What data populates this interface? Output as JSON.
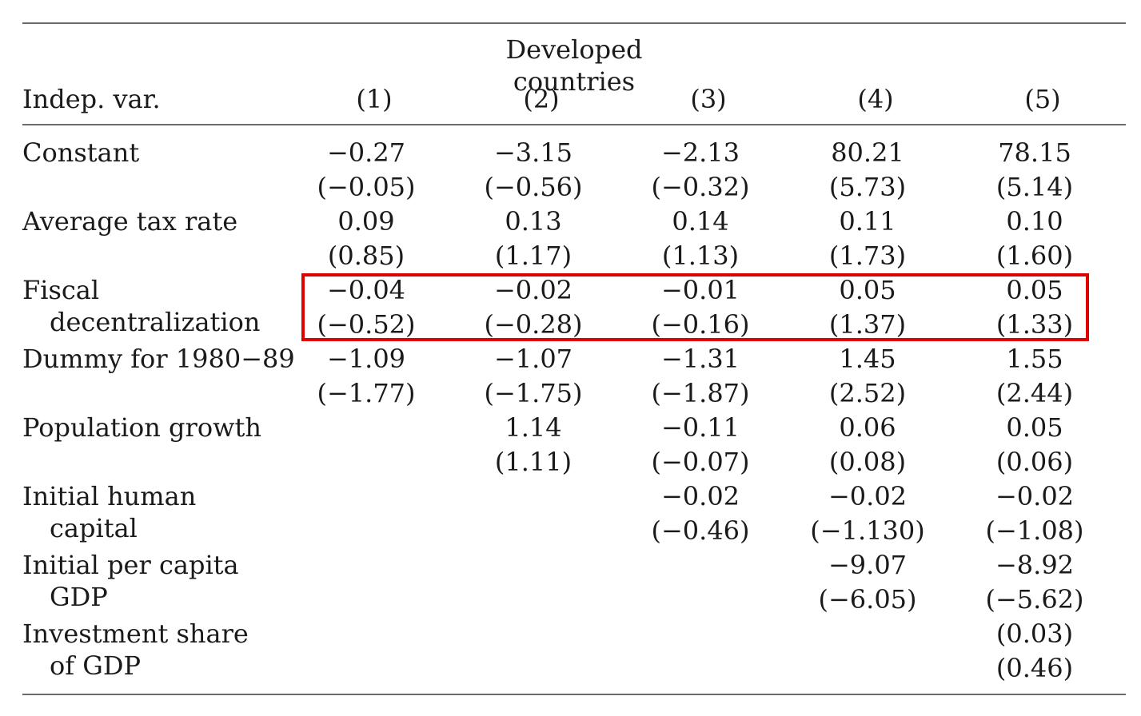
{
  "table": {
    "caption": "Developed countries",
    "stub_header": "Indep. var.",
    "columns": [
      "(1)",
      "(2)",
      "(3)",
      "(4)",
      "(5)"
    ],
    "rows": [
      {
        "label": [
          "Constant"
        ],
        "coef": [
          "−0.27",
          "−3.15",
          "−2.13",
          "80.21",
          "78.15"
        ],
        "tstat": [
          "(−0.05)",
          "(−0.56)",
          "(−0.32)",
          "(5.73)",
          "(5.14)"
        ]
      },
      {
        "label": [
          "Average tax rate"
        ],
        "coef": [
          "0.09",
          "0.13",
          "0.14",
          "0.11",
          "0.10"
        ],
        "tstat": [
          "(0.85)",
          "(1.17)",
          "(1.13)",
          "(1.73)",
          "(1.60)"
        ]
      },
      {
        "label": [
          "Fiscal",
          "decentralization"
        ],
        "coef": [
          "−0.04",
          "−0.02",
          "−0.01",
          "0.05",
          "0.05"
        ],
        "tstat": [
          "(−0.52)",
          "(−0.28)",
          "(−0.16)",
          "(1.37)",
          "(1.33)"
        ]
      },
      {
        "label": [
          "Dummy for 1980−89"
        ],
        "coef": [
          "−1.09",
          "−1.07",
          "−1.31",
          "1.45",
          "1.55"
        ],
        "tstat": [
          "(−1.77)",
          "(−1.75)",
          "(−1.87)",
          "(2.52)",
          "(2.44)"
        ]
      },
      {
        "label": [
          "Population growth"
        ],
        "coef": [
          "",
          "1.14",
          "−0.11",
          "0.06",
          "0.05"
        ],
        "tstat": [
          "",
          "(1.11)",
          "(−0.07)",
          "(0.08)",
          "(0.06)"
        ]
      },
      {
        "label": [
          "Initial human",
          "capital"
        ],
        "coef": [
          "",
          "",
          "−0.02",
          "−0.02",
          "−0.02"
        ],
        "tstat": [
          "",
          "",
          "(−0.46)",
          "(−1.130)",
          "(−1.08)"
        ]
      },
      {
        "label": [
          "Initial per capita",
          "GDP"
        ],
        "coef": [
          "",
          "",
          "",
          "−9.07",
          "−8.92"
        ],
        "tstat": [
          "",
          "",
          "",
          "(−6.05)",
          "(−5.62)"
        ]
      },
      {
        "label": [
          "Investment share",
          "of GDP"
        ],
        "coef": [
          "",
          "",
          "",
          "",
          "(0.03)"
        ],
        "tstat": [
          "",
          "",
          "",
          "",
          "(0.46)"
        ]
      }
    ],
    "highlight": {
      "row": "Fiscal decentralization",
      "color": "#e00000"
    }
  }
}
